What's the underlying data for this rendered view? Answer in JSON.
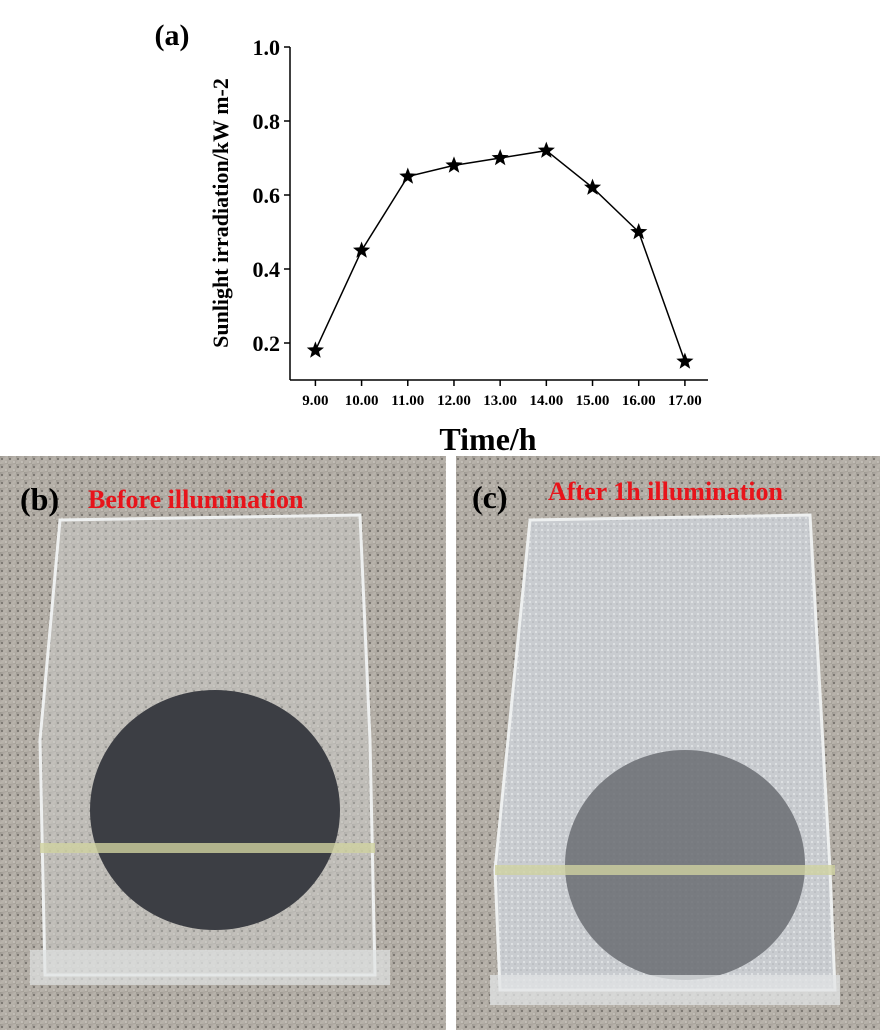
{
  "chart_data": {
    "type": "line",
    "label": "(a)",
    "ylabel": "Sunlight irradiation/kW m-2",
    "xlabel": "Time/h",
    "x": [
      9,
      10,
      11,
      12,
      13,
      14,
      15,
      16,
      17
    ],
    "series": [
      {
        "color": "#000000",
        "marker": "star",
        "values": [
          0.18,
          0.45,
          0.65,
          0.68,
          0.7,
          0.72,
          0.62,
          0.5,
          0.15
        ]
      }
    ],
    "xlim": [
      8.45,
      17.5
    ],
    "xticks": [
      {
        "value": 9,
        "label": "9.00"
      },
      {
        "value": 10,
        "label": "10.00"
      },
      {
        "value": 11,
        "label": "11.00"
      },
      {
        "value": 12,
        "label": "12.00"
      },
      {
        "value": 13,
        "label": "13.00"
      },
      {
        "value": 14,
        "label": "14.00"
      },
      {
        "value": 15,
        "label": "15.00"
      },
      {
        "value": 16,
        "label": "16.00"
      },
      {
        "value": 17,
        "label": "17.00"
      }
    ],
    "ylim": [
      0.1,
      1.0
    ],
    "yticks": [
      0.2,
      0.4,
      0.6,
      0.8,
      {
        "value": 1,
        "label": "1.0"
      }
    ],
    "grid": false
  },
  "panels": [
    {
      "label": "(b)",
      "caption": "Before illumination"
    },
    {
      "label": "(c)",
      "caption": "After 1h illumination"
    }
  ]
}
